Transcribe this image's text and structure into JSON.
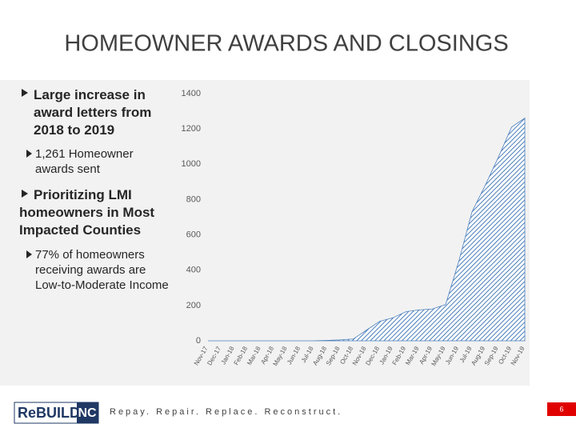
{
  "title": "HOMEOWNER AWARDS AND CLOSINGS",
  "bullets": [
    {
      "text": "Large increase in award letters from 2018 to 2019",
      "sub": "1,261 Homeowner awards sent"
    },
    {
      "text": "Prioritizing LMI homeowners in Most Impacted Counties",
      "sub": "77% of homeowners receiving awards are Low-to-Moderate Income"
    }
  ],
  "footer": {
    "logo": "ReBUILD",
    "logo_badge": "NC",
    "tagline": "Repay. Repair. Replace. Reconstruct.",
    "page": "6"
  },
  "chart_data": {
    "type": "area",
    "categories": [
      "Nov-17",
      "Dec-17",
      "Jan-18",
      "Feb-18",
      "Mar-18",
      "Apr-18",
      "May-18",
      "Jun-18",
      "Jul-18",
      "Aug-18",
      "Sep-18",
      "Oct-18",
      "Nov-18",
      "Dec-18",
      "Jan-19",
      "Feb-19",
      "Mar-19",
      "Apr-19",
      "May-19",
      "Jun-19",
      "Jul-19",
      "Aug-19",
      "Sep-19",
      "Oct-19",
      "Nov-19"
    ],
    "values": [
      0,
      0,
      0,
      0,
      0,
      0,
      0,
      0,
      0,
      2,
      5,
      10,
      60,
      110,
      130,
      165,
      175,
      180,
      205,
      450,
      730,
      880,
      1040,
      1210,
      1261
    ],
    "color": "#4a7ebb",
    "ylim": [
      0,
      1400
    ],
    "yticks": [
      0,
      200,
      400,
      600,
      800,
      1000,
      1200,
      1400
    ]
  }
}
